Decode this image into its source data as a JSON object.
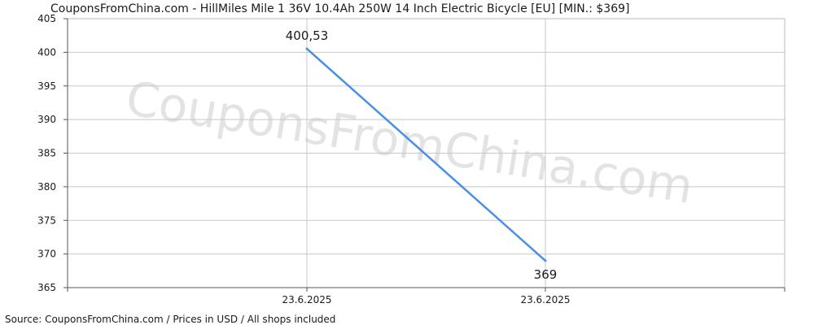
{
  "title": "CouponsFromChina.com - HillMiles Mile 1 36V 10.4Ah 250W 14 Inch Electric Bicycle [EU] [MIN.: $369]",
  "watermark": "CouponsFromChina.com",
  "source": "Source: CouponsFromChina.com / Prices in USD / All shops included",
  "chart_data": {
    "type": "line",
    "title": "CouponsFromChina.com - HillMiles Mile 1 36V 10.4Ah 250W 14 Inch Electric Bicycle [EU] [MIN.: $369]",
    "xlabel": "",
    "ylabel": "",
    "x_tick_labels": [
      "23.6.2025",
      "23.6.2025"
    ],
    "y_ticks": [
      365,
      370,
      375,
      380,
      385,
      390,
      395,
      400,
      405
    ],
    "ylim": [
      365,
      405
    ],
    "grid": true,
    "legend": "none",
    "series": [
      {
        "points": [
          {
            "x": "23.6.2025",
            "y": 400.53,
            "label": "400,53"
          },
          {
            "x": "23.6.2025",
            "y": 369,
            "label": "369"
          }
        ],
        "color": "#4a90e2"
      }
    ]
  }
}
